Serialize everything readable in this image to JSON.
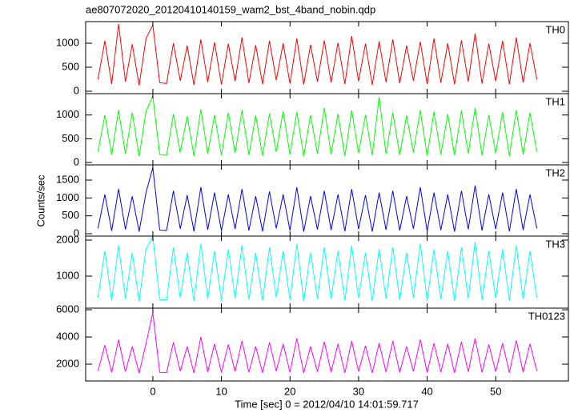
{
  "chart_data": [
    {
      "type": "line",
      "title": "ae807072020_20120410140159_wam2_bst_4band_nobin.qdp",
      "label": "TH0",
      "color": "#ff0000",
      "x": [
        -8,
        -7,
        -6,
        -5,
        -4,
        -3,
        -2,
        -1,
        0,
        1,
        2,
        3,
        4,
        5,
        6,
        7,
        8,
        9,
        10,
        11,
        12,
        13,
        14,
        15,
        16,
        17,
        18,
        19,
        20,
        21,
        22,
        23,
        24,
        25,
        26,
        27,
        28,
        29,
        30,
        31,
        32,
        33,
        34,
        35,
        36,
        37,
        38,
        39,
        40,
        41,
        42,
        43,
        44,
        45,
        46,
        47,
        48,
        49,
        50,
        51,
        52,
        53,
        54,
        55,
        56
      ],
      "values": [
        250,
        1050,
        150,
        1400,
        200,
        980,
        120,
        1100,
        1380,
        180,
        160,
        1000,
        220,
        950,
        130,
        1080,
        190,
        1020,
        140,
        990,
        210,
        1120,
        170,
        960,
        150,
        1050,
        230,
        1000,
        160,
        1100,
        140,
        970,
        200,
        1060,
        180,
        1010,
        150,
        1150,
        210,
        990,
        130,
        1040,
        190,
        1080,
        170,
        950,
        220,
        1030,
        150,
        1100,
        180,
        1000,
        140,
        1060,
        200,
        1200,
        160,
        990,
        210,
        1050,
        150,
        1120,
        180,
        1000,
        250
      ],
      "xlim": [
        -9.8,
        60.6
      ],
      "xticks": [
        0,
        10,
        20,
        30,
        40,
        50
      ],
      "ylim": [
        -50,
        1450
      ],
      "yticks": [
        0,
        500,
        1000
      ]
    },
    {
      "type": "line",
      "label": "TH1",
      "color": "#00ff00",
      "x": [
        -8,
        -7,
        -6,
        -5,
        -4,
        -3,
        -2,
        -1,
        0,
        1,
        2,
        3,
        4,
        5,
        6,
        7,
        8,
        9,
        10,
        11,
        12,
        13,
        14,
        15,
        16,
        17,
        18,
        19,
        20,
        21,
        22,
        23,
        24,
        25,
        26,
        27,
        28,
        29,
        30,
        31,
        32,
        33,
        34,
        35,
        36,
        37,
        38,
        39,
        40,
        41,
        42,
        43,
        44,
        45,
        46,
        47,
        48,
        49,
        50,
        51,
        52,
        53,
        54,
        55,
        56
      ],
      "values": [
        230,
        1000,
        160,
        1100,
        190,
        1050,
        130,
        1080,
        1400,
        170,
        150,
        1020,
        210,
        980,
        140,
        1120,
        180,
        1000,
        150,
        1050,
        200,
        1100,
        160,
        990,
        140,
        1030,
        220,
        1080,
        170,
        1060,
        130,
        1000,
        190,
        1150,
        170,
        1020,
        140,
        1100,
        200,
        1000,
        150,
        1380,
        180,
        1050,
        160,
        990,
        210,
        1100,
        140,
        1070,
        170,
        1020,
        150,
        1090,
        190,
        1150,
        150,
        1000,
        200,
        1060,
        140,
        1100,
        170,
        1050,
        230
      ],
      "xlim": [
        -9.8,
        60.6
      ],
      "xticks": [
        0,
        10,
        20,
        30,
        40,
        50
      ],
      "ylim": [
        -50,
        1450
      ],
      "yticks": [
        0,
        500,
        1000
      ]
    },
    {
      "type": "line",
      "label": "TH2",
      "color": "#0000ff",
      "ylabel": "Counts/sec",
      "x": [
        -8,
        -7,
        -6,
        -5,
        -4,
        -3,
        -2,
        -1,
        0,
        1,
        2,
        3,
        4,
        5,
        6,
        7,
        8,
        9,
        10,
        11,
        12,
        13,
        14,
        15,
        16,
        17,
        18,
        19,
        20,
        21,
        22,
        23,
        24,
        25,
        26,
        27,
        28,
        29,
        30,
        31,
        32,
        33,
        34,
        35,
        36,
        37,
        38,
        39,
        40,
        41,
        42,
        43,
        44,
        45,
        46,
        47,
        48,
        49,
        50,
        51,
        52,
        53,
        54,
        55,
        56
      ],
      "values": [
        150,
        1100,
        80,
        1250,
        120,
        1050,
        60,
        1150,
        1850,
        100,
        90,
        1200,
        140,
        1080,
        70,
        1300,
        110,
        1150,
        80,
        1100,
        130,
        1250,
        90,
        1050,
        70,
        1180,
        150,
        1100,
        90,
        1300,
        60,
        1050,
        120,
        1200,
        100,
        1100,
        70,
        1250,
        130,
        1080,
        60,
        1150,
        110,
        1200,
        90,
        1050,
        140,
        1300,
        70,
        1150,
        100,
        1100,
        60,
        1200,
        120,
        1350,
        90,
        1100,
        130,
        1150,
        70,
        1250,
        100,
        1100,
        150
      ],
      "xlim": [
        -9.8,
        60.6
      ],
      "xticks": [
        0,
        10,
        20,
        30,
        40,
        50
      ],
      "ylim": [
        -67,
        1925
      ],
      "yticks": [
        0,
        500,
        1000,
        1500
      ]
    },
    {
      "type": "line",
      "label": "TH3",
      "color": "#00ffff",
      "x": [
        -8,
        -7,
        -6,
        -5,
        -4,
        -3,
        -2,
        -1,
        0,
        1,
        2,
        3,
        4,
        5,
        6,
        7,
        8,
        9,
        10,
        11,
        12,
        13,
        14,
        15,
        16,
        17,
        18,
        19,
        20,
        21,
        22,
        23,
        24,
        25,
        26,
        27,
        28,
        29,
        30,
        31,
        32,
        33,
        34,
        35,
        36,
        37,
        38,
        39,
        40,
        41,
        42,
        43,
        44,
        45,
        46,
        47,
        48,
        49,
        50,
        51,
        52,
        53,
        54,
        55,
        56
      ],
      "values": [
        400,
        1700,
        330,
        1850,
        380,
        1650,
        300,
        1750,
        2100,
        350,
        340,
        1800,
        400,
        1650,
        310,
        1900,
        370,
        1700,
        330,
        1750,
        390,
        1850,
        350,
        1650,
        320,
        1800,
        410,
        1700,
        340,
        1900,
        300,
        1650,
        380,
        1800,
        360,
        1700,
        320,
        1850,
        390,
        1650,
        310,
        1750,
        370,
        1800,
        340,
        1650,
        400,
        1900,
        320,
        1750,
        360,
        1700,
        310,
        1800,
        380,
        1950,
        340,
        1700,
        390,
        1750,
        320,
        1850,
        360,
        1700,
        400
      ],
      "xlim": [
        -9.8,
        60.6
      ],
      "xticks": [
        0,
        10,
        20,
        30,
        40,
        50
      ],
      "ylim": [
        111,
        2111
      ],
      "yticks": [
        1000,
        2000
      ]
    },
    {
      "type": "line",
      "label": "TH0123",
      "color": "#ff00ff",
      "xlabel": "Time [sec] 0 = 2012/04/10 14:01:59.717",
      "x": [
        -8,
        -7,
        -6,
        -5,
        -4,
        -3,
        -2,
        -1,
        0,
        1,
        2,
        3,
        4,
        5,
        6,
        7,
        8,
        9,
        10,
        11,
        12,
        13,
        14,
        15,
        16,
        17,
        18,
        19,
        20,
        21,
        22,
        23,
        24,
        25,
        26,
        27,
        28,
        29,
        30,
        31,
        32,
        33,
        34,
        35,
        36,
        37,
        38,
        39,
        40,
        41,
        42,
        43,
        44,
        45,
        46,
        47,
        48,
        49,
        50,
        51,
        52,
        53,
        54,
        55,
        56
      ],
      "values": [
        1500,
        3400,
        1400,
        3800,
        1450,
        3300,
        1350,
        3500,
        5800,
        1400,
        1380,
        3600,
        1480,
        3300,
        1360,
        4000,
        1420,
        3500,
        1390,
        3450,
        1460,
        3700,
        1400,
        3300,
        1370,
        3600,
        1490,
        3500,
        1400,
        3900,
        1350,
        3300,
        1440,
        3650,
        1420,
        3500,
        1370,
        3700,
        1460,
        3350,
        1360,
        3550,
        1430,
        3700,
        1400,
        3300,
        1470,
        3800,
        1380,
        3550,
        1420,
        3500,
        1360,
        3650,
        1440,
        3900,
        1400,
        3450,
        1460,
        3550,
        1380,
        3750,
        1420,
        3500,
        1500
      ],
      "xlim": [
        -9.8,
        60.6
      ],
      "xticks": [
        0,
        10,
        20,
        30,
        40,
        50
      ],
      "ylim": [
        765,
        6118
      ],
      "yticks": [
        2000,
        4000,
        6000
      ]
    }
  ]
}
